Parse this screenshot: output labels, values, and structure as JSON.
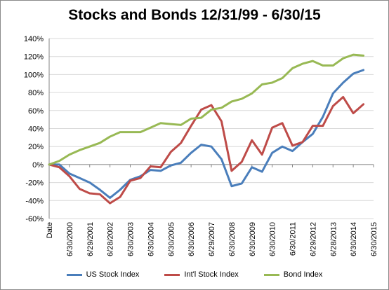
{
  "chart_data": {
    "type": "line",
    "title": "Stocks and Bonds 12/31/99 - 6/30/15",
    "xlabel": "",
    "ylabel": "",
    "x_tick_labels": [
      "Date",
      "6/30/2000",
      "6/29/2001",
      "6/28/2002",
      "6/30/2003",
      "6/30/2004",
      "6/30/2005",
      "6/30/2006",
      "6/29/2007",
      "6/30/2008",
      "6/30/2009",
      "6/30/2010",
      "6/30/2011",
      "6/29/2012",
      "6/28/2013",
      "6/30/2014",
      "6/30/2015"
    ],
    "y_tick_labels": [
      "-60%",
      "-40%",
      "-20%",
      "0%",
      "20%",
      "40%",
      "60%",
      "80%",
      "100%",
      "120%",
      "140%"
    ],
    "ylim": [
      -60,
      140
    ],
    "y_step": 20,
    "grid": true,
    "legend_position": "bottom",
    "x": [
      0,
      0.5,
      1,
      1.5,
      2,
      2.5,
      3,
      3.5,
      4,
      4.5,
      5,
      5.5,
      6,
      6.5,
      7,
      7.5,
      8,
      8.5,
      9,
      9.5,
      10,
      10.5,
      11,
      11.5,
      12,
      12.5,
      13,
      13.5,
      14,
      14.5,
      15,
      15.5
    ],
    "series": [
      {
        "name": "US Stock Index",
        "color": "#4a7ebb",
        "values": [
          0,
          0,
          -10,
          -15,
          -20,
          -28,
          -37,
          -28,
          -17,
          -13,
          -6,
          -7,
          -1,
          2,
          13,
          22,
          20,
          6,
          -24,
          -21,
          -3,
          -8,
          13,
          20,
          15,
          25,
          34,
          53,
          79,
          91,
          101,
          105
        ]
      },
      {
        "name": "Int'l Stock Index",
        "color": "#be4b48",
        "values": [
          0,
          -3,
          -13,
          -27,
          -32,
          -33,
          -43,
          -36,
          -18,
          -15,
          -2,
          -3,
          14,
          24,
          43,
          61,
          66,
          48,
          -7,
          3,
          27,
          11,
          41,
          46,
          21,
          25,
          43,
          43,
          65,
          75,
          57,
          67
        ]
      },
      {
        "name": "Bond Index",
        "color": "#98b954",
        "values": [
          0,
          4,
          11,
          16,
          20,
          24,
          31,
          36,
          36,
          36,
          41,
          46,
          45,
          44,
          51,
          52,
          61,
          63,
          70,
          73,
          79,
          89,
          91,
          96,
          107,
          112,
          115,
          110,
          110,
          118,
          122,
          121
        ]
      }
    ]
  }
}
